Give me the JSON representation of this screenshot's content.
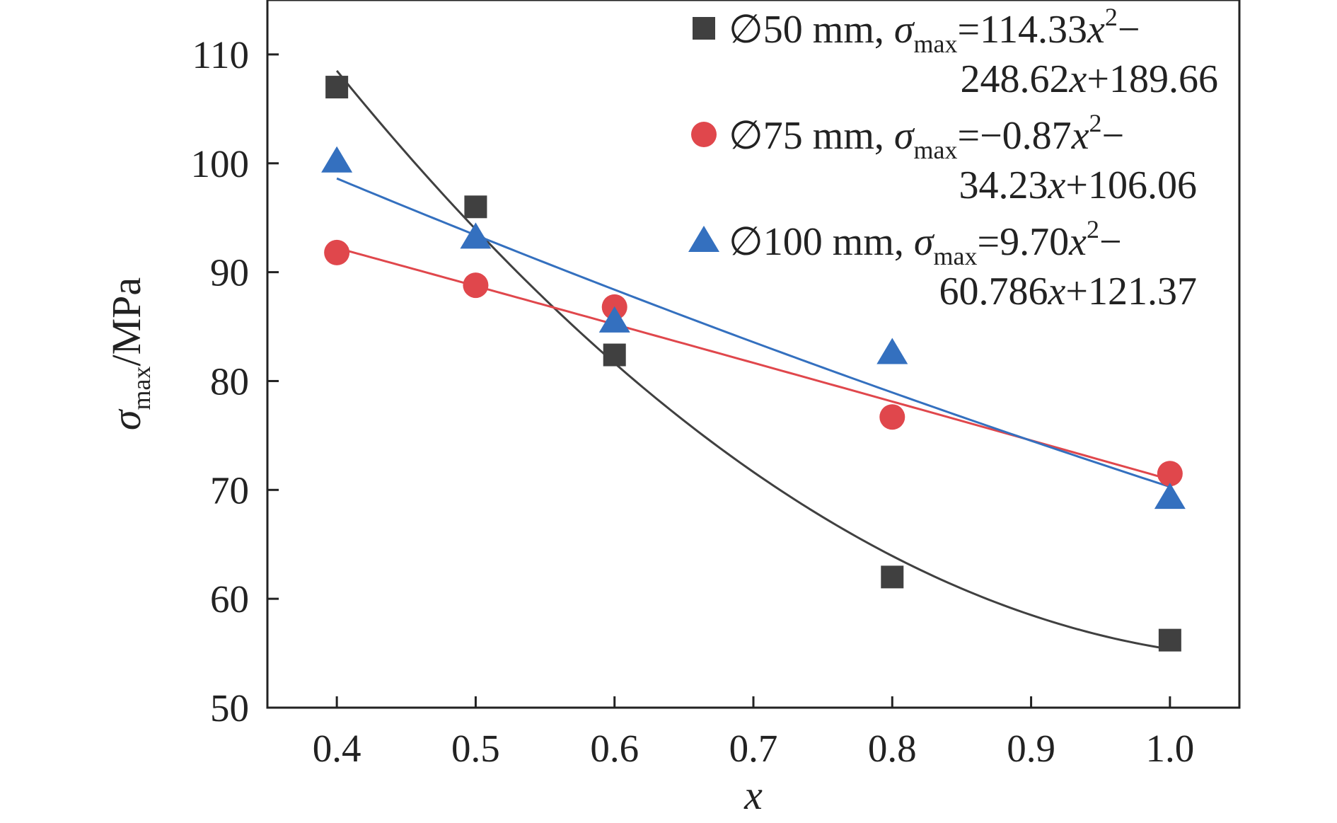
{
  "chart_data": {
    "type": "scatter",
    "xlabel": "x",
    "ylabel": {
      "symbol": "σ",
      "subscript": "max",
      "unit": "/MPa"
    },
    "xlim": [
      0.35,
      1.05
    ],
    "ylim": [
      50,
      115
    ],
    "xticks": [
      "0.4",
      "0.5",
      "0.6",
      "0.7",
      "0.8",
      "0.9",
      "1.0"
    ],
    "yticks": [
      "50",
      "60",
      "70",
      "80",
      "90",
      "100",
      "110"
    ],
    "grid": false,
    "legend_position": "top-right",
    "series": [
      {
        "name": "∅50 mm",
        "marker": "square",
        "color": "#404040",
        "x": [
          0.4,
          0.5,
          0.6,
          0.8,
          1.0
        ],
        "y": [
          107.0,
          96.0,
          82.4,
          62.0,
          56.2
        ],
        "fit": {
          "type": "quadratic",
          "coeffs": [
            114.33,
            -248.62,
            189.66
          ]
        },
        "legend_lines": [
          {
            "prefix": "∅50 mm, ",
            "sigma": "σ",
            "sub": "max",
            "eq_a": "=114.33",
            "var": "x",
            "sup": "2",
            "tail": "−"
          },
          {
            "text_a": "248.62",
            "var": "x",
            "text_b": "+189.66"
          }
        ]
      },
      {
        "name": "∅75 mm",
        "marker": "circle",
        "color": "#e0474c",
        "x": [
          0.4,
          0.5,
          0.6,
          0.8,
          1.0
        ],
        "y": [
          91.8,
          88.8,
          86.8,
          76.7,
          71.5
        ],
        "fit": {
          "type": "quadratic",
          "coeffs": [
            -0.87,
            -34.23,
            106.06
          ]
        },
        "legend_lines": [
          {
            "prefix": "∅75 mm, ",
            "sigma": "σ",
            "sub": "max",
            "eq_a": "=−0.87",
            "var": "x",
            "sup": "2",
            "tail": "−"
          },
          {
            "text_a": "34.23",
            "var": "x",
            "text_b": "+106.06"
          }
        ]
      },
      {
        "name": "∅100 mm",
        "marker": "triangle",
        "color": "#3470bf",
        "x": [
          0.4,
          0.5,
          0.6,
          0.8,
          1.0
        ],
        "y": [
          100.2,
          93.2,
          85.5,
          82.6,
          69.3
        ],
        "fit": {
          "type": "quadratic",
          "coeffs": [
            9.7,
            -60.786,
            121.37
          ]
        },
        "legend_lines": [
          {
            "prefix": "∅100 mm, ",
            "sigma": "σ",
            "sub": "max",
            "eq_a": "=9.70",
            "var": "x",
            "sup": "2",
            "tail": "−"
          },
          {
            "text_a": "60.786",
            "var": "x",
            "text_b": "+121.37"
          }
        ]
      }
    ]
  }
}
